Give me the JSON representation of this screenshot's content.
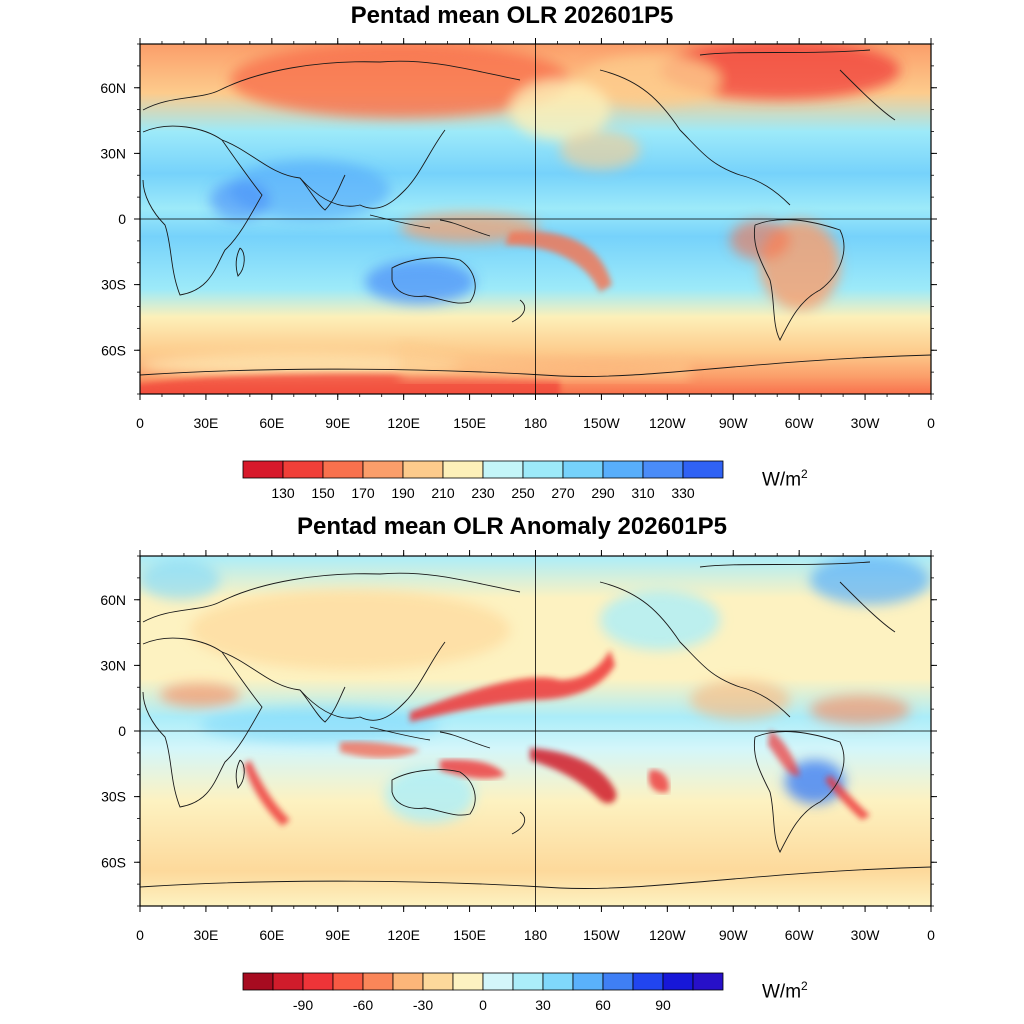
{
  "panels": [
    {
      "title": "Pentad mean OLR 202601P5",
      "lat_labels": [
        "60N",
        "30N",
        "0",
        "30S",
        "60S"
      ],
      "lon_labels": [
        "0",
        "30E",
        "60E",
        "90E",
        "120E",
        "150E",
        "180",
        "150W",
        "120W",
        "90W",
        "60W",
        "30W",
        "0"
      ],
      "colorbar": {
        "colors": [
          "#d7192b",
          "#f03f38",
          "#f8714d",
          "#fb9e6a",
          "#fdcb8c",
          "#fdf0b9",
          "#c4f5f8",
          "#9deaf9",
          "#76d2fb",
          "#58aefb",
          "#4a8cf8",
          "#3062f4"
        ],
        "labels": [
          "130",
          "150",
          "170",
          "190",
          "210",
          "230",
          "250",
          "270",
          "290",
          "310",
          "330"
        ],
        "unit": "W/m",
        "unit_sup": "2"
      }
    },
    {
      "title": "Pentad mean OLR Anomaly 202601P5",
      "lat_labels": [
        "60N",
        "30N",
        "0",
        "30S",
        "60S"
      ],
      "lon_labels": [
        "0",
        "30E",
        "60E",
        "90E",
        "120E",
        "150E",
        "180",
        "150W",
        "120W",
        "90W",
        "60W",
        "30W",
        "0"
      ],
      "colorbar": {
        "colors": [
          "#a70b20",
          "#d01c2b",
          "#ee3438",
          "#f85a43",
          "#fa8659",
          "#fcb679",
          "#fdd99b",
          "#fdf2c1",
          "#d3f6fa",
          "#abedf9",
          "#80d8fb",
          "#5ab1fb",
          "#3f7ff5",
          "#2145f0",
          "#1717d8",
          "#2710c8"
        ],
        "labels": [
          "-90",
          "-60",
          "-30",
          "0",
          "30",
          "60",
          "90"
        ],
        "unit": "W/m",
        "unit_sup": "2"
      }
    }
  ]
}
